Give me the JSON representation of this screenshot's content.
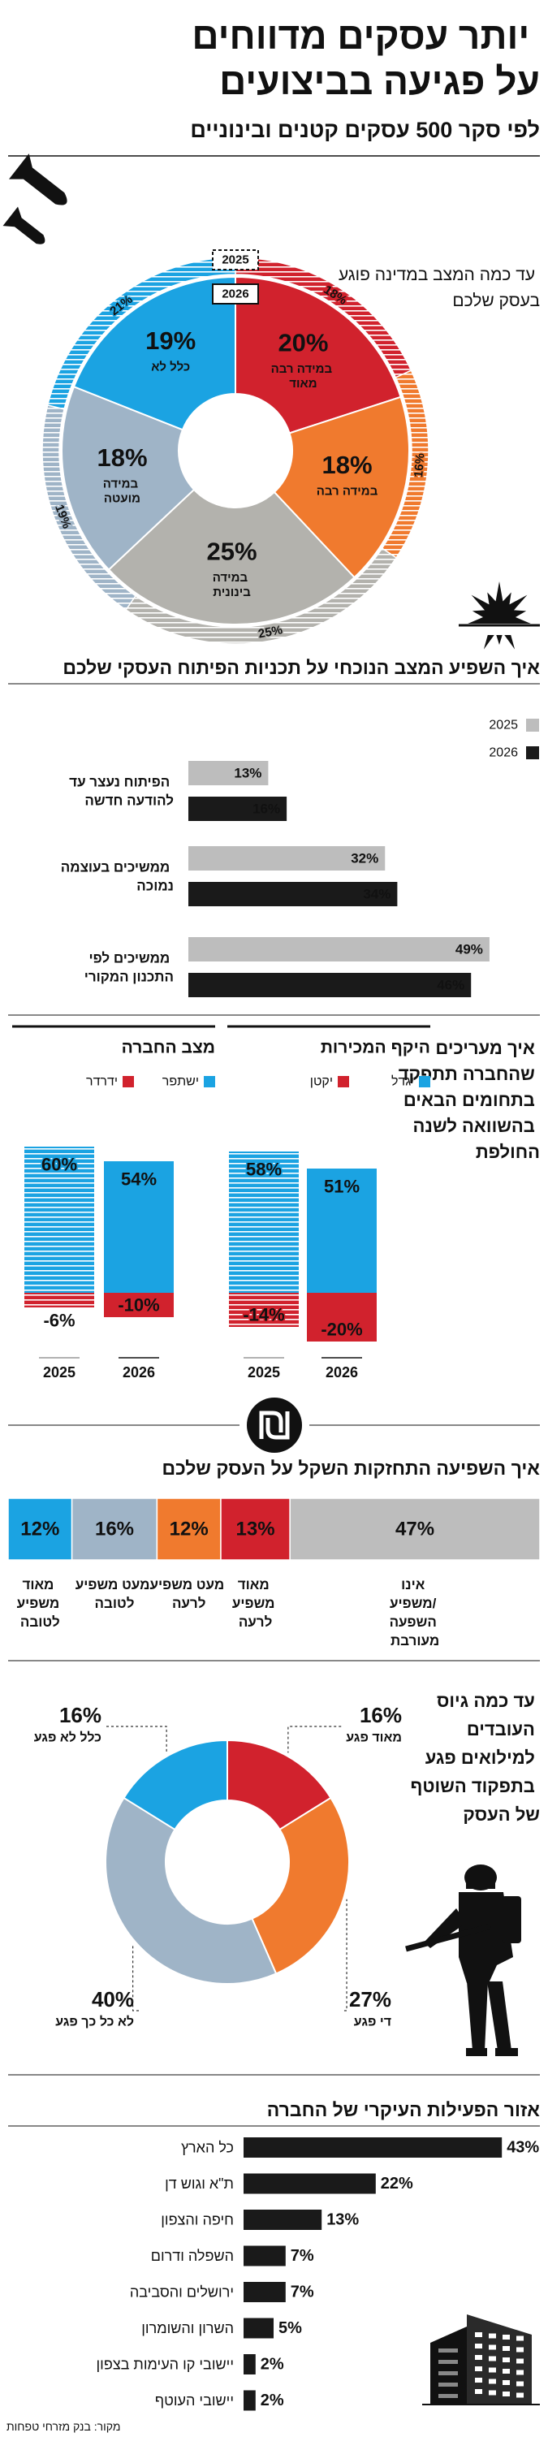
{
  "header": {
    "title": "יותר עסקים מדווחים על פגיעה בביצועים",
    "subtitle": "לפי סקר 500 עסקים קטנים ובינוניים",
    "source": "מקור: בנק מזרחי טפחות"
  },
  "chart_data": [
    {
      "type": "pie",
      "title": "עד כמה המצב במדינה פוגע בעסק שלכם",
      "categories": [
        "במידה רבה מאוד",
        "במידה רבה",
        "במידה בינונית",
        "במידה מועטה",
        "כלל לא"
      ],
      "colors": [
        "#d1222d",
        "#f07a2e",
        "#b3b2ad",
        "#9fb4c7",
        "#1ba3e2"
      ],
      "series": [
        {
          "name": "2025",
          "values": [
            18,
            16,
            25,
            19,
            21
          ],
          "value_labels": [
            "18%",
            "16%",
            "25%",
            "19%",
            "21%"
          ]
        },
        {
          "name": "2026",
          "values": [
            20,
            18,
            25,
            18,
            19
          ],
          "value_labels": [
            "20%",
            "18%",
            "25%",
            "18%",
            "19%"
          ]
        }
      ]
    },
    {
      "type": "bar",
      "orientation": "horizontal",
      "title": "איך השפיע המצב הנוכחי על תכניות הפיתוח העסקי שלכם",
      "categories": [
        "הפיתוח נעצר עד להודעה חדשה",
        "ממשיכים בעוצמה נמוכה",
        "ממשיכים לפי התכנון המקורי"
      ],
      "category_colors": [
        "#d1222d",
        "#f07a2e",
        "#1ba3e2"
      ],
      "series": [
        {
          "name": "2025",
          "color": "#bdbdbd",
          "values": [
            13,
            32,
            49
          ],
          "value_labels": [
            "13%",
            "32%",
            "49%"
          ]
        },
        {
          "name": "2026",
          "color": "#1a1a1a",
          "values": [
            16,
            34,
            46
          ],
          "value_labels": [
            "16%",
            "34%",
            "46%"
          ]
        }
      ]
    },
    {
      "type": "diverging_bar",
      "title": "איך מעריכים שהחברה תתפקד בתחומים הבאים בהשוואה לשנה החולפת",
      "panels": [
        {
          "title": "היקף המכירות",
          "categories": [
            "2025",
            "2026"
          ],
          "series": [
            {
              "name": "יגדל",
              "color": "#1ba3e2",
              "values": [
                58,
                51
              ],
              "value_labels": [
                "58%",
                "51%"
              ]
            },
            {
              "name": "יקטן",
              "color": "#d1222d",
              "values": [
                -14,
                -20
              ],
              "value_labels": [
                "-14%",
                "-20%"
              ]
            }
          ]
        },
        {
          "title": "מצב החברה",
          "categories": [
            "2025",
            "2026"
          ],
          "series": [
            {
              "name": "ישתפר",
              "color": "#1ba3e2",
              "values": [
                60,
                54
              ],
              "value_labels": [
                "60%",
                "54%"
              ]
            },
            {
              "name": "ידרדר",
              "color": "#d1222d",
              "values": [
                -6,
                -10
              ],
              "value_labels": [
                "-6%",
                "-10%"
              ]
            }
          ]
        }
      ]
    },
    {
      "type": "stacked_bar",
      "orientation": "horizontal",
      "title": "איך השפיעה התחזקות השקל על העסק שלכם",
      "series": [
        {
          "name": "מאוד משפיע לטובה",
          "color": "#1ba3e2",
          "values": [
            12
          ],
          "value_labels": [
            "12%"
          ]
        },
        {
          "name": "מעט משפיע לטובה",
          "color": "#9fb4c7",
          "values": [
            16
          ],
          "value_labels": [
            "16%"
          ]
        },
        {
          "name": "מעט משפיע לרעה",
          "color": "#f07a2e",
          "values": [
            12
          ],
          "value_labels": [
            "12%"
          ]
        },
        {
          "name": "מאוד משפיע לרעה",
          "color": "#d1222d",
          "values": [
            13
          ],
          "value_labels": [
            "13%"
          ]
        },
        {
          "name": "אינו משפיע/ השפעה מעורבת",
          "color": "#bdbdbd",
          "values": [
            47
          ],
          "value_labels": [
            "47%"
          ]
        }
      ]
    },
    {
      "type": "donut",
      "title": "עד כמה גיוס העובדים למילואים פגע בתפקוד השוטף של העסק",
      "categories": [
        "מאוד פגע",
        "די פגע",
        "לא כל כך פגע",
        "כלל לא פגע"
      ],
      "colors": [
        "#d1222d",
        "#f07a2e",
        "#9fb4c7",
        "#1ba3e2"
      ],
      "values": [
        16,
        27,
        40,
        16
      ],
      "value_labels": [
        "16%",
        "27%",
        "40%",
        "16%"
      ]
    },
    {
      "type": "bar",
      "orientation": "horizontal",
      "title": "אזור הפעילות העיקרי של החברה",
      "categories": [
        "כל הארץ",
        "ת\"א וגוש דן",
        "חיפה והצפון",
        "השפלה ודרום",
        "ירושלים והסביבה",
        "השרון והשומרון",
        "יישובי קו העימות בצפון",
        "יישובי העוטף"
      ],
      "color": "#1a1a1a",
      "values": [
        43,
        22,
        13,
        7,
        7,
        5,
        2,
        2
      ],
      "value_labels": [
        "43%",
        "22%",
        "13%",
        "7%",
        "7%",
        "5%",
        "2%",
        "2%"
      ]
    }
  ]
}
